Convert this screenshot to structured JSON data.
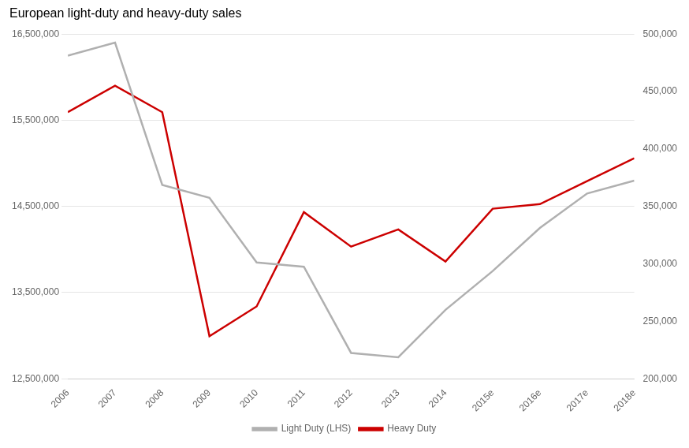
{
  "chart_data": {
    "type": "line",
    "title": "European light-duty and heavy-duty sales",
    "categories": [
      "2006",
      "2007",
      "2008",
      "2009",
      "2010",
      "2011",
      "2012",
      "2013",
      "2014",
      "2015e",
      "2016e",
      "2017e",
      "2018e"
    ],
    "series": [
      {
        "name": "Light Duty (LHS)",
        "color": "#b0b0b0",
        "axis": "y",
        "values": [
          16250000,
          16400000,
          14750000,
          14600000,
          13850000,
          13800000,
          12800000,
          12750000,
          13300000,
          13750000,
          14250000,
          14650000,
          14800000
        ]
      },
      {
        "name": "Heavy Duty",
        "color": "#cc0000",
        "axis": "y2",
        "values": [
          432000,
          455000,
          432000,
          237000,
          263000,
          345000,
          315000,
          330000,
          302000,
          348000,
          352000,
          372000,
          392000
        ]
      }
    ],
    "ylim": [
      12500000,
      16500000
    ],
    "yticks": [
      {
        "value": 12500000,
        "label": "12,500,000"
      },
      {
        "value": 13500000,
        "label": "13,500,000"
      },
      {
        "value": 14500000,
        "label": "14,500,000"
      },
      {
        "value": 15500000,
        "label": "15,500,000"
      },
      {
        "value": 16500000,
        "label": "16,500,000"
      }
    ],
    "y2lim": [
      200000,
      500000
    ],
    "y2ticks": [
      {
        "value": 200000,
        "label": "200,000"
      },
      {
        "value": 250000,
        "label": "250,000"
      },
      {
        "value": 300000,
        "label": "300,000"
      },
      {
        "value": 350000,
        "label": "350,000"
      },
      {
        "value": 400000,
        "label": "400,000"
      },
      {
        "value": 450000,
        "label": "450,000"
      },
      {
        "value": 500000,
        "label": "500,000"
      }
    ],
    "grid": true,
    "legend": "bottom"
  }
}
